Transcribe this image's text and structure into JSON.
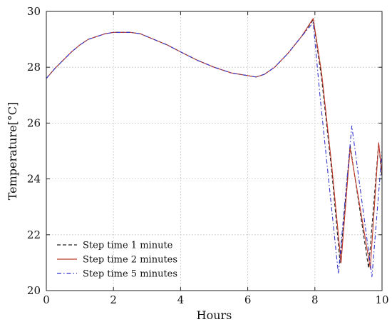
{
  "chart_data": {
    "type": "line",
    "xlabel": "Hours",
    "ylabel": "Temperature[°C]",
    "xlim": [
      0,
      10
    ],
    "ylim": [
      20,
      30
    ],
    "xticks": [
      "0",
      "2",
      "4",
      "6",
      "8",
      "10"
    ],
    "yticks": [
      "20",
      "22",
      "24",
      "26",
      "28",
      "30"
    ],
    "grid": true,
    "legend_position": "bottom-left",
    "series": [
      {
        "name": "Step time 1 minute",
        "color": "#222222",
        "dash": "dashed",
        "points": [
          [
            0,
            27.6
          ],
          [
            0.25,
            27.95
          ],
          [
            0.5,
            28.25
          ],
          [
            0.75,
            28.55
          ],
          [
            1,
            28.8
          ],
          [
            1.25,
            29.0
          ],
          [
            1.5,
            29.1
          ],
          [
            1.75,
            29.2
          ],
          [
            2,
            29.25
          ],
          [
            2.5,
            29.25
          ],
          [
            2.8,
            29.2
          ],
          [
            3.2,
            29.0
          ],
          [
            3.6,
            28.8
          ],
          [
            4,
            28.55
          ],
          [
            4.5,
            28.25
          ],
          [
            5,
            28.0
          ],
          [
            5.5,
            27.8
          ],
          [
            6,
            27.7
          ],
          [
            6.25,
            27.65
          ],
          [
            6.5,
            27.75
          ],
          [
            6.8,
            28.0
          ],
          [
            7.2,
            28.5
          ],
          [
            7.6,
            29.1
          ],
          [
            7.95,
            29.7
          ],
          [
            8.2,
            27.6
          ],
          [
            8.5,
            24.3
          ],
          [
            8.75,
            21.0
          ],
          [
            9.05,
            25.2
          ],
          [
            9.6,
            20.8
          ],
          [
            9.9,
            25.3
          ],
          [
            10,
            24.0
          ]
        ]
      },
      {
        "name": "Step time 2 minutes",
        "color": "#c0392b",
        "dash": "solid",
        "points": [
          [
            0,
            27.6
          ],
          [
            0.25,
            27.95
          ],
          [
            0.5,
            28.25
          ],
          [
            0.75,
            28.55
          ],
          [
            1,
            28.8
          ],
          [
            1.25,
            29.0
          ],
          [
            1.5,
            29.1
          ],
          [
            1.75,
            29.2
          ],
          [
            2,
            29.25
          ],
          [
            2.5,
            29.25
          ],
          [
            2.8,
            29.2
          ],
          [
            3.2,
            29.0
          ],
          [
            3.6,
            28.8
          ],
          [
            4,
            28.55
          ],
          [
            4.5,
            28.25
          ],
          [
            5,
            28.0
          ],
          [
            5.5,
            27.8
          ],
          [
            6,
            27.7
          ],
          [
            6.25,
            27.65
          ],
          [
            6.5,
            27.75
          ],
          [
            6.8,
            28.0
          ],
          [
            7.2,
            28.5
          ],
          [
            7.6,
            29.1
          ],
          [
            7.95,
            29.75
          ],
          [
            8.2,
            27.8
          ],
          [
            8.5,
            24.5
          ],
          [
            8.78,
            21.0
          ],
          [
            9.05,
            25.1
          ],
          [
            9.65,
            20.8
          ],
          [
            9.9,
            25.3
          ],
          [
            10,
            24.2
          ]
        ]
      },
      {
        "name": "Step time 5 minutes",
        "color": "#3333cc",
        "dash": "dashdot",
        "points": [
          [
            0,
            27.6
          ],
          [
            0.25,
            27.95
          ],
          [
            0.5,
            28.25
          ],
          [
            0.75,
            28.55
          ],
          [
            1,
            28.8
          ],
          [
            1.25,
            29.0
          ],
          [
            1.5,
            29.1
          ],
          [
            1.75,
            29.2
          ],
          [
            2,
            29.25
          ],
          [
            2.5,
            29.25
          ],
          [
            2.8,
            29.2
          ],
          [
            3.2,
            29.0
          ],
          [
            3.6,
            28.8
          ],
          [
            4,
            28.55
          ],
          [
            4.5,
            28.25
          ],
          [
            5,
            28.0
          ],
          [
            5.5,
            27.8
          ],
          [
            6,
            27.7
          ],
          [
            6.25,
            27.65
          ],
          [
            6.5,
            27.75
          ],
          [
            6.8,
            28.0
          ],
          [
            7.2,
            28.5
          ],
          [
            7.6,
            29.1
          ],
          [
            7.95,
            29.6
          ],
          [
            8.15,
            27.0
          ],
          [
            8.45,
            23.5
          ],
          [
            8.7,
            20.6
          ],
          [
            9.1,
            25.9
          ],
          [
            9.7,
            20.5
          ],
          [
            10,
            25.0
          ]
        ]
      }
    ]
  }
}
